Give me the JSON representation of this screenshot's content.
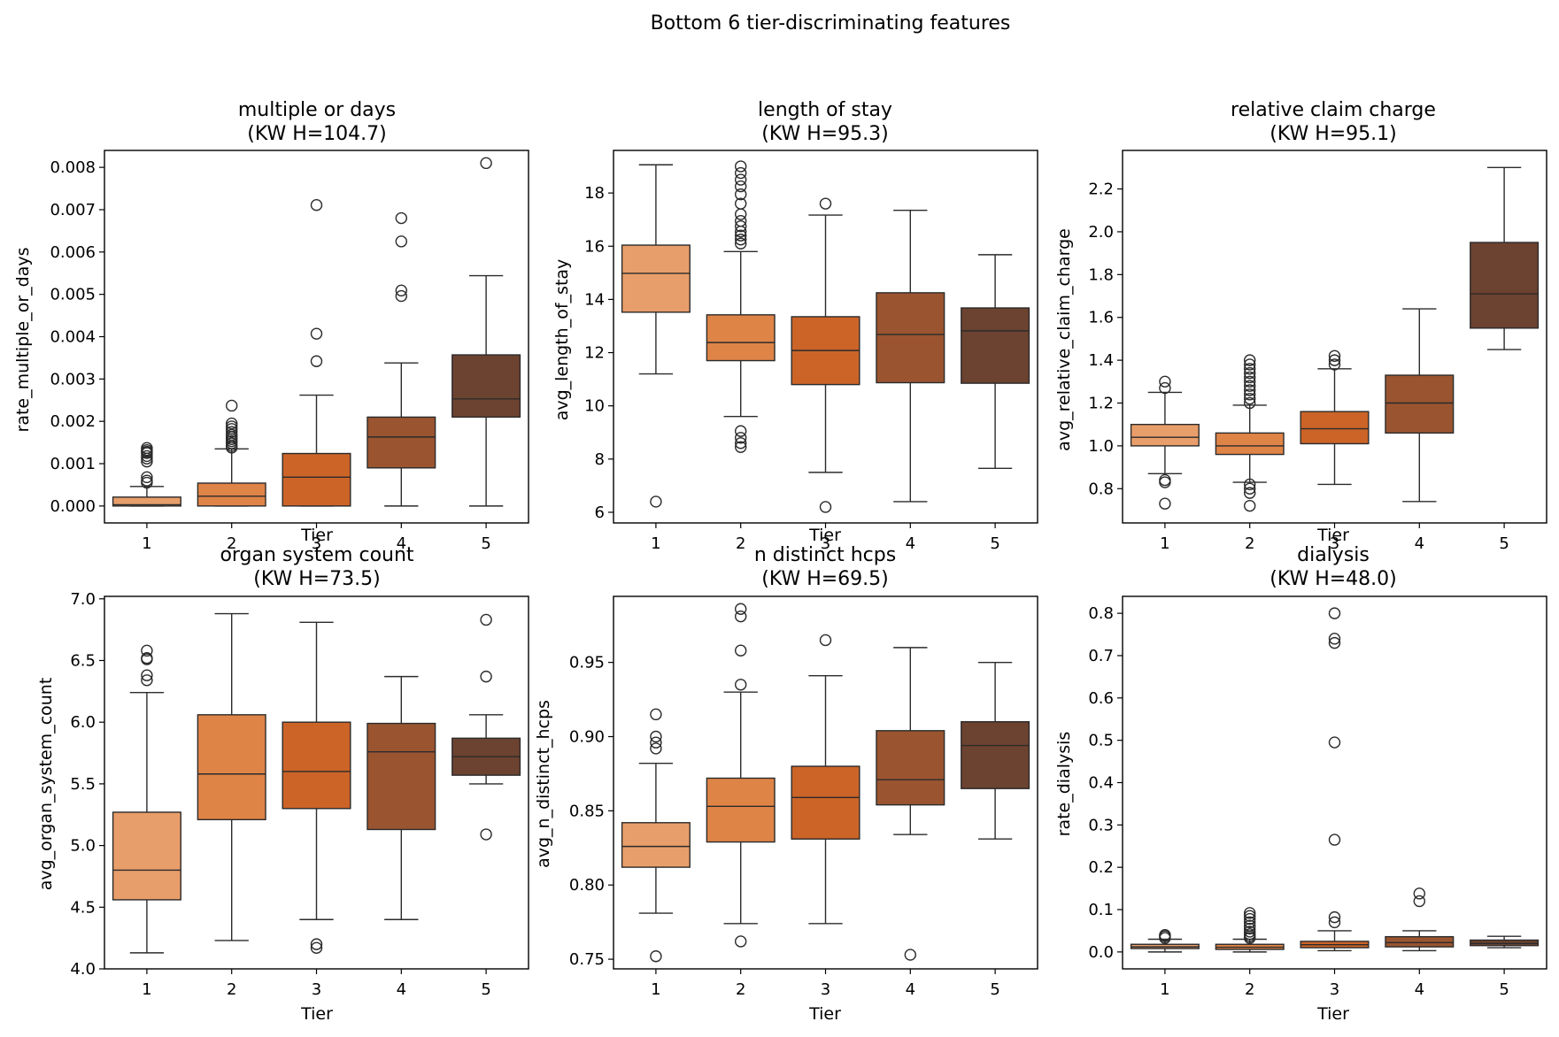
{
  "title": "Bottom 6 tier-discriminating features",
  "colors": {
    "tiers": [
      "#e89e6a",
      "#df8447",
      "#cc6428",
      "#9a5530",
      "#6c4230"
    ],
    "stroke": "#2b2b2b",
    "background": "#ffffff"
  },
  "chart_data": [
    {
      "type": "box",
      "title_line1": "multiple or days",
      "title_line2": "(KW H=104.7)",
      "ylabel": "rate_multiple_or_days",
      "xlabel": "Tier",
      "categories": [
        "1",
        "2",
        "3",
        "4",
        "5"
      ],
      "ylim": [
        -0.0004,
        0.0084
      ],
      "yticks": [
        0,
        0.001,
        0.002,
        0.003,
        0.004,
        0.005,
        0.006,
        0.007,
        0.008
      ],
      "ytick_labels": [
        "0.000",
        "0.001",
        "0.002",
        "0.003",
        "0.004",
        "0.005",
        "0.006",
        "0.007",
        "0.008"
      ],
      "boxes": [
        {
          "whislo": 0.0,
          "q1": 0.0,
          "med": 3e-05,
          "q3": 0.00021,
          "whishi": 0.00046,
          "fliers": [
            0.00055,
            0.0006,
            0.00068,
            0.00105,
            0.00112,
            0.00118,
            0.00125,
            0.00128,
            0.00132,
            0.00137
          ]
        },
        {
          "whislo": 0.0,
          "q1": 0.0,
          "med": 0.00023,
          "q3": 0.00054,
          "whishi": 0.00135,
          "fliers": [
            0.00138,
            0.00142,
            0.00148,
            0.00153,
            0.00158,
            0.00163,
            0.00168,
            0.00175,
            0.00182,
            0.00188,
            0.00195,
            0.00237
          ]
        },
        {
          "whislo": 0.0,
          "q1": 0.0,
          "med": 0.00068,
          "q3": 0.00124,
          "whishi": 0.00262,
          "fliers": [
            0.00342,
            0.00407,
            0.00711
          ]
        },
        {
          "whislo": 0.0,
          "q1": 0.0009,
          "med": 0.00163,
          "q3": 0.0021,
          "whishi": 0.00338,
          "fliers": [
            0.00496,
            0.00509,
            0.00625,
            0.0068
          ]
        },
        {
          "whislo": 0.0,
          "q1": 0.0021,
          "med": 0.00253,
          "q3": 0.00357,
          "whishi": 0.00544,
          "fliers": [
            0.0081
          ]
        }
      ]
    },
    {
      "type": "box",
      "title_line1": "length of stay",
      "title_line2": "(KW H=95.3)",
      "ylabel": "avg_length_of_stay",
      "xlabel": "Tier",
      "categories": [
        "1",
        "2",
        "3",
        "4",
        "5"
      ],
      "ylim": [
        5.6,
        19.6
      ],
      "yticks": [
        6,
        8,
        10,
        12,
        14,
        16,
        18
      ],
      "ytick_labels": [
        "6",
        "8",
        "10",
        "12",
        "14",
        "16",
        "18"
      ],
      "boxes": [
        {
          "whislo": 11.2,
          "q1": 13.52,
          "med": 14.98,
          "q3": 16.04,
          "whishi": 19.06,
          "fliers": [
            6.4
          ]
        },
        {
          "whislo": 9.6,
          "q1": 11.7,
          "med": 12.38,
          "q3": 13.42,
          "whishi": 15.8,
          "fliers": [
            8.45,
            8.6,
            8.8,
            9.05,
            16.1,
            16.25,
            16.4,
            16.55,
            16.75,
            16.95,
            17.2,
            17.6,
            17.95,
            18.25,
            18.5,
            18.75,
            19.0
          ]
        },
        {
          "whislo": 7.5,
          "q1": 10.8,
          "med": 12.08,
          "q3": 13.35,
          "whishi": 17.17,
          "fliers": [
            6.2,
            17.6
          ]
        },
        {
          "whislo": 6.4,
          "q1": 10.87,
          "med": 12.68,
          "q3": 14.25,
          "whishi": 17.35,
          "fliers": []
        },
        {
          "whislo": 7.65,
          "q1": 10.85,
          "med": 12.82,
          "q3": 13.68,
          "whishi": 15.68,
          "fliers": []
        }
      ]
    },
    {
      "type": "box",
      "title_line1": "relative claim charge",
      "title_line2": "(KW H=95.1)",
      "ylabel": "avg_relative_claim_charge",
      "xlabel": "Tier",
      "categories": [
        "1",
        "2",
        "3",
        "4",
        "5"
      ],
      "ylim": [
        0.64,
        2.38
      ],
      "yticks": [
        0.8,
        1.0,
        1.2,
        1.4,
        1.6,
        1.8,
        2.0,
        2.2
      ],
      "ytick_labels": [
        "0.8",
        "1.0",
        "1.2",
        "1.4",
        "1.6",
        "1.8",
        "2.0",
        "2.2"
      ],
      "boxes": [
        {
          "whislo": 0.87,
          "q1": 1.0,
          "med": 1.04,
          "q3": 1.1,
          "whishi": 1.25,
          "fliers": [
            0.73,
            0.83,
            0.84,
            1.27,
            1.3
          ]
        },
        {
          "whislo": 0.83,
          "q1": 0.96,
          "med": 1.0,
          "q3": 1.06,
          "whishi": 1.19,
          "fliers": [
            0.72,
            0.78,
            0.8,
            0.82,
            1.2,
            1.22,
            1.24,
            1.26,
            1.28,
            1.3,
            1.32,
            1.34,
            1.36,
            1.38,
            1.4
          ]
        },
        {
          "whislo": 0.82,
          "q1": 1.01,
          "med": 1.08,
          "q3": 1.16,
          "whishi": 1.36,
          "fliers": [
            1.38,
            1.4,
            1.42
          ]
        },
        {
          "whislo": 0.74,
          "q1": 1.06,
          "med": 1.2,
          "q3": 1.33,
          "whishi": 1.64,
          "fliers": []
        },
        {
          "whislo": 1.45,
          "q1": 1.55,
          "med": 1.71,
          "q3": 1.95,
          "whishi": 2.3,
          "fliers": []
        }
      ]
    },
    {
      "type": "box",
      "title_line1": "organ system count",
      "title_line2": "(KW H=73.5)",
      "ylabel": "avg_organ_system_count",
      "xlabel": "Tier",
      "categories": [
        "1",
        "2",
        "3",
        "4",
        "5"
      ],
      "ylim": [
        4.0,
        7.02
      ],
      "yticks": [
        4.0,
        4.5,
        5.0,
        5.5,
        6.0,
        6.5,
        7.0
      ],
      "ytick_labels": [
        "4.0",
        "4.5",
        "5.0",
        "5.5",
        "6.0",
        "6.5",
        "7.0"
      ],
      "boxes": [
        {
          "whislo": 4.13,
          "q1": 4.56,
          "med": 4.8,
          "q3": 5.27,
          "whishi": 6.24,
          "fliers": [
            6.34,
            6.38,
            6.51,
            6.52,
            6.58
          ]
        },
        {
          "whislo": 4.23,
          "q1": 5.21,
          "med": 5.58,
          "q3": 6.06,
          "whishi": 6.88,
          "fliers": []
        },
        {
          "whislo": 4.4,
          "q1": 5.3,
          "med": 5.6,
          "q3": 6.0,
          "whishi": 6.81,
          "fliers": [
            4.17,
            4.2
          ]
        },
        {
          "whislo": 4.4,
          "q1": 5.13,
          "med": 5.76,
          "q3": 5.99,
          "whishi": 6.37,
          "fliers": []
        },
        {
          "whislo": 5.5,
          "q1": 5.57,
          "med": 5.72,
          "q3": 5.87,
          "whishi": 6.06,
          "fliers": [
            5.09,
            6.37,
            6.83
          ]
        }
      ]
    },
    {
      "type": "box",
      "title_line1": "n distinct hcps",
      "title_line2": "(KW H=69.5)",
      "ylabel": "avg_n_distinct_hcps",
      "xlabel": "Tier",
      "categories": [
        "1",
        "2",
        "3",
        "4",
        "5"
      ],
      "ylim": [
        0.7435,
        0.9945
      ],
      "yticks": [
        0.75,
        0.8,
        0.85,
        0.9,
        0.95
      ],
      "ytick_labels": [
        "0.75",
        "0.80",
        "0.85",
        "0.90",
        "0.95"
      ],
      "boxes": [
        {
          "whislo": 0.781,
          "q1": 0.812,
          "med": 0.826,
          "q3": 0.842,
          "whishi": 0.882,
          "fliers": [
            0.752,
            0.892,
            0.896,
            0.9,
            0.915
          ]
        },
        {
          "whislo": 0.774,
          "q1": 0.829,
          "med": 0.853,
          "q3": 0.872,
          "whishi": 0.93,
          "fliers": [
            0.762,
            0.935,
            0.958,
            0.981,
            0.986
          ]
        },
        {
          "whislo": 0.774,
          "q1": 0.831,
          "med": 0.859,
          "q3": 0.88,
          "whishi": 0.941,
          "fliers": [
            0.965
          ]
        },
        {
          "whislo": 0.834,
          "q1": 0.854,
          "med": 0.871,
          "q3": 0.904,
          "whishi": 0.96,
          "fliers": [
            0.753
          ]
        },
        {
          "whislo": 0.831,
          "q1": 0.865,
          "med": 0.894,
          "q3": 0.91,
          "whishi": 0.95,
          "fliers": []
        }
      ]
    },
    {
      "type": "box",
      "title_line1": "dialysis",
      "title_line2": "(KW H=48.0)",
      "ylabel": "rate_dialysis",
      "xlabel": "Tier",
      "categories": [
        "1",
        "2",
        "3",
        "4",
        "5"
      ],
      "ylim": [
        -0.04,
        0.84
      ],
      "yticks": [
        0,
        0.1,
        0.2,
        0.3,
        0.4,
        0.5,
        0.6,
        0.7,
        0.8
      ],
      "ytick_labels": [
        "0.0",
        "0.1",
        "0.2",
        "0.3",
        "0.4",
        "0.5",
        "0.6",
        "0.7",
        "0.8"
      ],
      "boxes": [
        {
          "whislo": 0.0,
          "q1": 0.008,
          "med": 0.012,
          "q3": 0.018,
          "whishi": 0.03,
          "fliers": [
            0.033,
            0.037,
            0.04
          ]
        },
        {
          "whislo": 0.0,
          "q1": 0.006,
          "med": 0.011,
          "q3": 0.018,
          "whishi": 0.03,
          "fliers": [
            0.033,
            0.037,
            0.042,
            0.048,
            0.055,
            0.062,
            0.07,
            0.078,
            0.085,
            0.092
          ]
        },
        {
          "whislo": 0.003,
          "q1": 0.01,
          "med": 0.017,
          "q3": 0.025,
          "whishi": 0.05,
          "fliers": [
            0.07,
            0.082,
            0.265,
            0.495,
            0.73,
            0.74,
            0.8
          ]
        },
        {
          "whislo": 0.003,
          "q1": 0.012,
          "med": 0.022,
          "q3": 0.036,
          "whishi": 0.05,
          "fliers": [
            0.12,
            0.138
          ]
        },
        {
          "whislo": 0.01,
          "q1": 0.015,
          "med": 0.02,
          "q3": 0.028,
          "whishi": 0.037,
          "fliers": []
        }
      ]
    }
  ]
}
